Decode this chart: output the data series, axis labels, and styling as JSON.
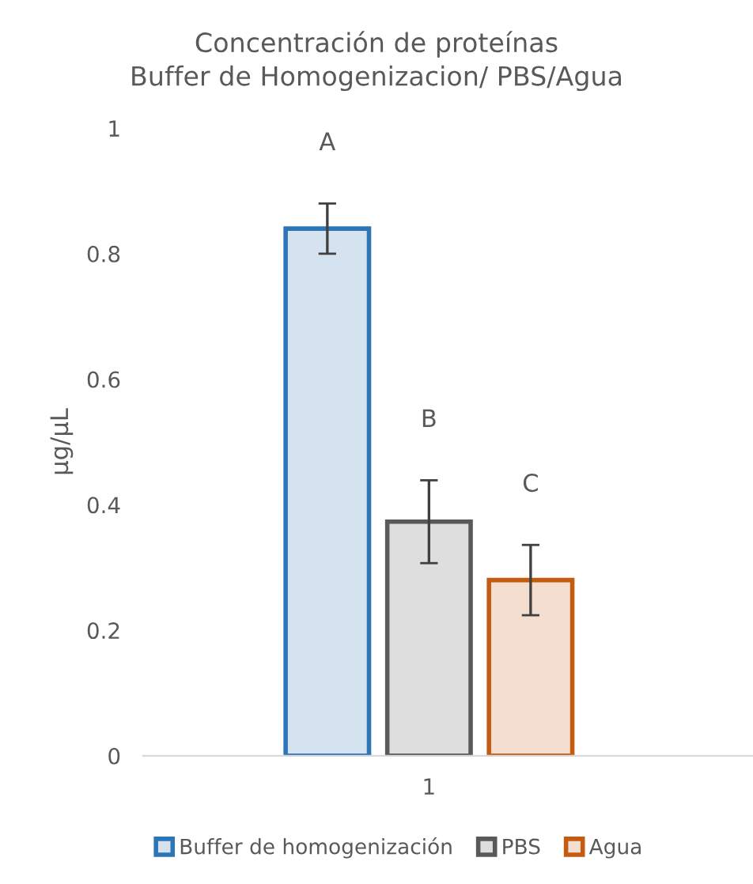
{
  "chart_data": {
    "type": "bar",
    "title": "Concentración de proteínas\nBuffer de Homogenizacion/ PBS/Agua",
    "ylabel": "µg/µL",
    "categories": [
      "1"
    ],
    "series": [
      {
        "name": "Buffer de homogenización",
        "color": "#2e75b6",
        "values": [
          0.84
        ],
        "errors": [
          0.04
        ]
      },
      {
        "name": "PBS",
        "color": "#595959",
        "values": [
          0.373
        ],
        "errors": [
          0.066
        ]
      },
      {
        "name": "Agua",
        "color": "#c55a11",
        "values": [
          0.28
        ],
        "errors": [
          0.056
        ]
      }
    ],
    "annotations": [
      "A",
      "B",
      "C"
    ],
    "ylim": [
      0,
      1
    ],
    "yticks": [
      0,
      0.2,
      0.4,
      0.6,
      0.8,
      1
    ],
    "grid": false,
    "legend": "bottom"
  }
}
